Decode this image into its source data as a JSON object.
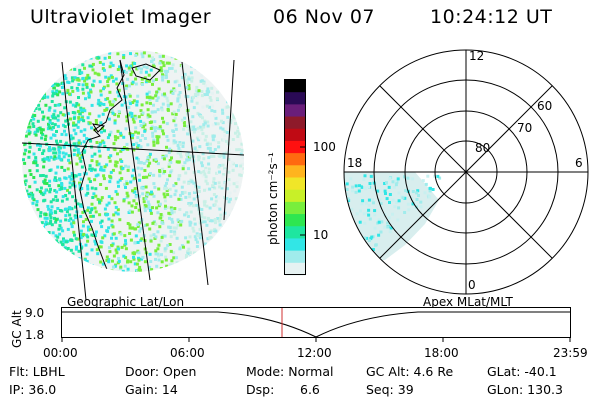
{
  "header": {
    "instrument": "Ultraviolet Imager",
    "date": "06 Nov 07",
    "time": "10:24:12 UT"
  },
  "geo_panel": {
    "label": "Geographic Lat/Lon"
  },
  "colorbar": {
    "unit_label": "photon cm⁻²s⁻¹",
    "ticks": [
      "100",
      "10"
    ],
    "colors": [
      "#000000",
      "#2a0a55",
      "#6a1e7a",
      "#8e1a2a",
      "#c00a14",
      "#ff1010",
      "#ff6a10",
      "#ffb41e",
      "#f0e628",
      "#c8f028",
      "#78ee3c",
      "#2ee650",
      "#1ee6a0",
      "#32e6e6",
      "#a0ecec",
      "#e6f2f2"
    ]
  },
  "polar_panel": {
    "label": "Apex MLat/MLT",
    "mlt_labels": {
      "top": "12",
      "left": "18",
      "right": "6",
      "bottom": "0"
    },
    "mlat_labels": [
      "60",
      "70",
      "80"
    ]
  },
  "altitude_plot": {
    "axis_label": "GC Alt",
    "y_ticks": [
      "9.0",
      "1.8"
    ],
    "x_ticks": [
      "00:00",
      "06:00",
      "12:00",
      "18:00",
      "23:59"
    ],
    "accent_color": "#d03030"
  },
  "footer": {
    "flt": "Flt: LBHL",
    "ip": "IP: 36.0",
    "door": "Door: Open",
    "gain": "Gain: 14",
    "mode": "Mode: Normal",
    "dsp_label": "Dsp:",
    "dsp_value": "6.6",
    "gc_alt": "GC Alt: 4.6 Re",
    "seq": "Seq: 39",
    "glat": "GLat: -40.1",
    "glon": "GLon: 130.3"
  }
}
